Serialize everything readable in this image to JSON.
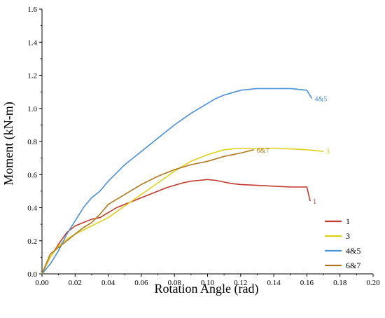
{
  "chart_data": {
    "type": "line",
    "title": "",
    "xlabel": "Rotation Angle (rad)",
    "ylabel": "Moment (kN-m)",
    "xlim": [
      0.0,
      0.2
    ],
    "ylim": [
      0.0,
      1.6
    ],
    "x_ticks": [
      "0.00",
      "0.02",
      "0.04",
      "0.06",
      "0.08",
      "0.10",
      "0.12",
      "0.14",
      "0.16",
      "0.18",
      "0.20"
    ],
    "y_ticks": [
      "0.0",
      "0.2",
      "0.4",
      "0.6",
      "0.8",
      "1.0",
      "1.2",
      "1.4",
      "1.6"
    ],
    "grid": false,
    "legend_position": "lower-right",
    "series": [
      {
        "name": "1",
        "color": "#c0392b",
        "end_label": "1",
        "points": [
          [
            0.0,
            0.0
          ],
          [
            0.005,
            0.1
          ],
          [
            0.01,
            0.18
          ],
          [
            0.015,
            0.25
          ],
          [
            0.02,
            0.29
          ],
          [
            0.025,
            0.31
          ],
          [
            0.03,
            0.33
          ],
          [
            0.035,
            0.34
          ],
          [
            0.04,
            0.37
          ],
          [
            0.045,
            0.4
          ],
          [
            0.05,
            0.42
          ],
          [
            0.055,
            0.44
          ],
          [
            0.06,
            0.46
          ],
          [
            0.065,
            0.48
          ],
          [
            0.07,
            0.5
          ],
          [
            0.075,
            0.52
          ],
          [
            0.08,
            0.535
          ],
          [
            0.085,
            0.55
          ],
          [
            0.09,
            0.56
          ],
          [
            0.095,
            0.565
          ],
          [
            0.1,
            0.57
          ],
          [
            0.105,
            0.565
          ],
          [
            0.11,
            0.555
          ],
          [
            0.115,
            0.545
          ],
          [
            0.12,
            0.54
          ],
          [
            0.13,
            0.535
          ],
          [
            0.14,
            0.53
          ],
          [
            0.15,
            0.525
          ],
          [
            0.16,
            0.525
          ],
          [
            0.162,
            0.44
          ]
        ]
      },
      {
        "name": "3",
        "color": "#e0d01a",
        "end_label": "3",
        "points": [
          [
            0.0,
            0.0
          ],
          [
            0.005,
            0.1
          ],
          [
            0.01,
            0.17
          ],
          [
            0.015,
            0.21
          ],
          [
            0.02,
            0.24
          ],
          [
            0.03,
            0.29
          ],
          [
            0.04,
            0.34
          ],
          [
            0.05,
            0.41
          ],
          [
            0.06,
            0.48
          ],
          [
            0.07,
            0.55
          ],
          [
            0.08,
            0.62
          ],
          [
            0.09,
            0.68
          ],
          [
            0.1,
            0.72
          ],
          [
            0.11,
            0.75
          ],
          [
            0.12,
            0.76
          ],
          [
            0.13,
            0.755
          ],
          [
            0.14,
            0.76
          ],
          [
            0.15,
            0.755
          ],
          [
            0.16,
            0.75
          ],
          [
            0.17,
            0.74
          ]
        ]
      },
      {
        "name": "4&5",
        "color": "#4a90d9",
        "end_label": "4&5",
        "points": [
          [
            0.0,
            0.0
          ],
          [
            0.005,
            0.06
          ],
          [
            0.01,
            0.14
          ],
          [
            0.015,
            0.24
          ],
          [
            0.02,
            0.32
          ],
          [
            0.025,
            0.4
          ],
          [
            0.03,
            0.46
          ],
          [
            0.035,
            0.5
          ],
          [
            0.04,
            0.56
          ],
          [
            0.05,
            0.66
          ],
          [
            0.06,
            0.74
          ],
          [
            0.07,
            0.82
          ],
          [
            0.08,
            0.9
          ],
          [
            0.09,
            0.97
          ],
          [
            0.1,
            1.03
          ],
          [
            0.105,
            1.06
          ],
          [
            0.11,
            1.08
          ],
          [
            0.12,
            1.11
          ],
          [
            0.13,
            1.12
          ],
          [
            0.14,
            1.12
          ],
          [
            0.15,
            1.12
          ],
          [
            0.16,
            1.11
          ],
          [
            0.163,
            1.06
          ]
        ]
      },
      {
        "name": "6&7",
        "color": "#b07a1a",
        "end_label": "6&7",
        "points": [
          [
            0.0,
            0.0
          ],
          [
            0.005,
            0.12
          ],
          [
            0.01,
            0.16
          ],
          [
            0.015,
            0.2
          ],
          [
            0.02,
            0.24
          ],
          [
            0.025,
            0.28
          ],
          [
            0.03,
            0.31
          ],
          [
            0.035,
            0.36
          ],
          [
            0.04,
            0.42
          ],
          [
            0.05,
            0.48
          ],
          [
            0.06,
            0.54
          ],
          [
            0.07,
            0.59
          ],
          [
            0.08,
            0.63
          ],
          [
            0.09,
            0.66
          ],
          [
            0.1,
            0.68
          ],
          [
            0.11,
            0.71
          ],
          [
            0.12,
            0.73
          ],
          [
            0.128,
            0.75
          ]
        ]
      }
    ]
  }
}
